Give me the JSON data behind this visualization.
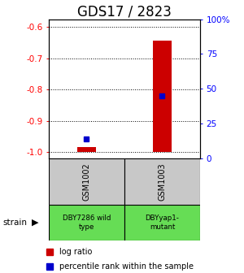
{
  "title": "GDS17 / 2823",
  "samples": [
    "GSM1002",
    "GSM1003"
  ],
  "strain_labels": [
    "DBY7286 wild\ntype",
    "DBYyap1-\nmutant"
  ],
  "log_ratio_values": [
    -0.985,
    -0.645
  ],
  "log_ratio_base": -1.0,
  "percentile_values": [
    14,
    45
  ],
  "ylim_left": [
    -1.02,
    -0.575
  ],
  "ylim_right": [
    0,
    100
  ],
  "yticks_left": [
    -1.0,
    -0.9,
    -0.8,
    -0.7,
    -0.6
  ],
  "yticks_right": [
    0,
    25,
    50,
    75,
    100
  ],
  "bar_color": "#cc0000",
  "dot_color": "#0000cc",
  "gray_box_color": "#c8c8c8",
  "green_box_color": "#66dd55",
  "title_fontsize": 12,
  "bar_width": 0.25
}
